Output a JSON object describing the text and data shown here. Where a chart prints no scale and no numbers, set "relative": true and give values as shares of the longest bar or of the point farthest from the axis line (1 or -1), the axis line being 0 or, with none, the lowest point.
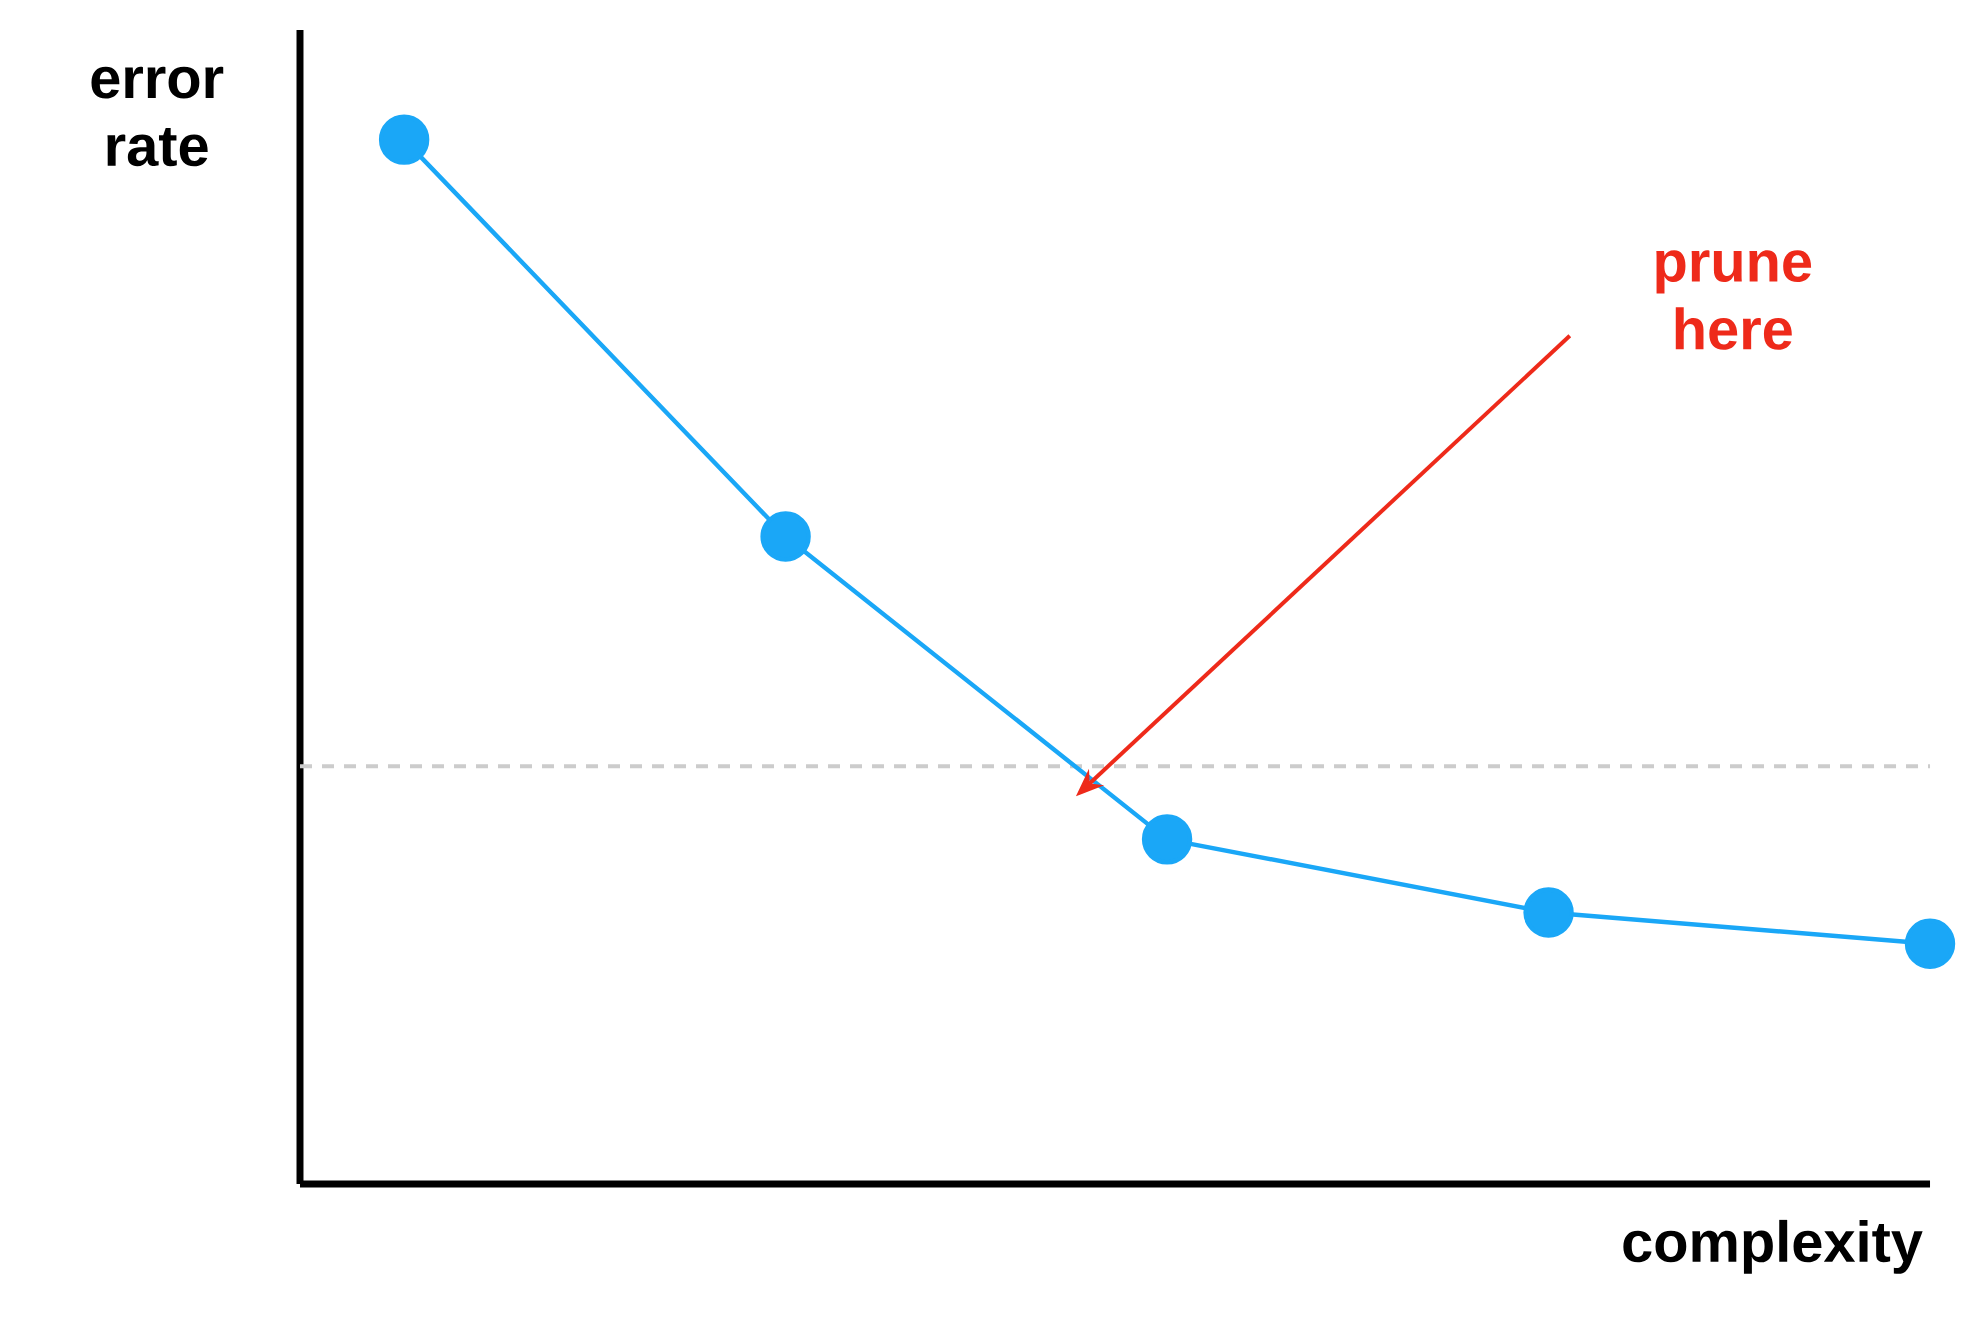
{
  "chart_data": {
    "type": "line",
    "xlabel": "complexity",
    "ylabel": "error rate",
    "categories": [
      null,
      null,
      null,
      null,
      null
    ],
    "series": [
      {
        "color": "#1aa7f7",
        "values": [
          1,
          0.62,
          0.33,
          0.26,
          0.23
        ]
      }
    ],
    "relative": true,
    "marker": "circle",
    "line_style": "solid",
    "ref_lines": [
      {
        "axis": "y",
        "value": 0.4,
        "color": "#cccccc",
        "line_style": "dashed"
      }
    ],
    "annotations": [
      "prune here"
    ]
  }
}
